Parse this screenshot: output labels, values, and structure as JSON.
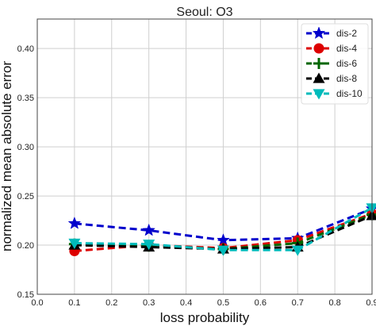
{
  "chart_data": {
    "type": "line",
    "title": "Seoul: O3",
    "xlabel": "loss probability",
    "ylabel": "normalized mean absolute error",
    "xlim": [
      0.0,
      0.9
    ],
    "ylim": [
      0.15,
      0.43
    ],
    "xticks": [
      0.0,
      0.1,
      0.2,
      0.3,
      0.4,
      0.5,
      0.6,
      0.7,
      0.8,
      0.9
    ],
    "xtick_labels": [
      "0.0",
      "0.1",
      "0.2",
      "0.3",
      "0.4",
      "0.5",
      "0.6",
      "0.7",
      "0.8",
      "0.9"
    ],
    "yticks": [
      0.15,
      0.2,
      0.25,
      0.3,
      0.35,
      0.4
    ],
    "ytick_labels": [
      "0.15",
      "0.20",
      "0.25",
      "0.30",
      "0.35",
      "0.40"
    ],
    "grid": true,
    "legend_position": "top-right",
    "x": [
      0.1,
      0.3,
      0.5,
      0.7,
      0.9
    ],
    "series": [
      {
        "name": "dis-2",
        "values": [
          0.222,
          0.215,
          0.205,
          0.207,
          0.237
        ],
        "color": "#0000cc",
        "marker": "star"
      },
      {
        "name": "dis-4",
        "values": [
          0.194,
          0.2,
          0.197,
          0.205,
          0.232
        ],
        "color": "#dd0000",
        "marker": "circle"
      },
      {
        "name": "dis-6",
        "values": [
          0.201,
          0.199,
          0.196,
          0.202,
          0.231
        ],
        "color": "#006600",
        "marker": "plus"
      },
      {
        "name": "dis-8",
        "values": [
          0.2,
          0.198,
          0.196,
          0.198,
          0.23
        ],
        "color": "#000000",
        "marker": "triangle-up"
      },
      {
        "name": "dis-10",
        "values": [
          0.202,
          0.201,
          0.195,
          0.195,
          0.238
        ],
        "color": "#00bbbb",
        "marker": "triangle-down"
      }
    ]
  }
}
